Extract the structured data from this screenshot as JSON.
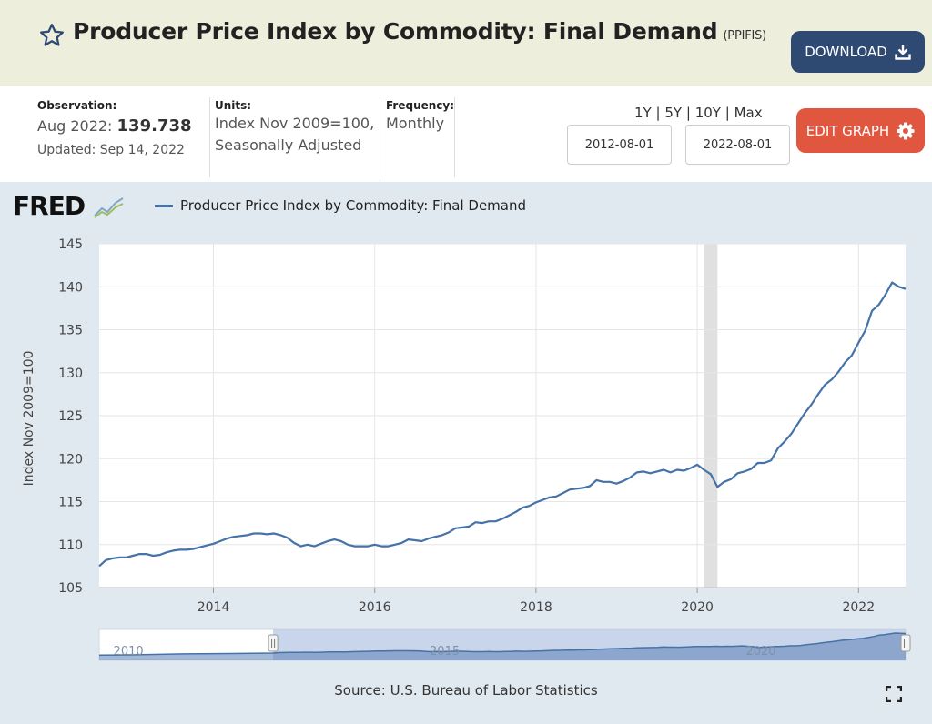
{
  "header": {
    "title": "Producer Price Index by Commodity: Final Demand",
    "series_id": "(PPIFIS)",
    "download_label": "DOWNLOAD"
  },
  "info": {
    "observation_label": "Observation:",
    "observation_date": "Aug 2022:",
    "observation_value": "139.738",
    "updated": "Updated: Sep 14, 2022",
    "units_label": "Units:",
    "units_line1": "Index Nov 2009=100,",
    "units_line2": "Seasonally Adjusted",
    "frequency_label": "Frequency:",
    "frequency_value": "Monthly",
    "range_1y": "1Y",
    "range_5y": "5Y",
    "range_10y": "10Y",
    "range_max": "Max",
    "range_sep": "|",
    "start_date": "2012-08-01",
    "end_date": "2022-08-01",
    "edit_label": "EDIT GRAPH"
  },
  "graph": {
    "logo": "FRED",
    "source": "Source: U.S. Bureau of Labor Statistics"
  },
  "colors": {
    "line": "#4572a7",
    "download_bg": "#2e4a72",
    "edit_bg": "#e1563f",
    "header_bg": "#eeeedd",
    "graph_bg": "#e1e9f0",
    "recession": "#e0e0e0"
  },
  "chart_data": {
    "type": "line",
    "title": "",
    "ylabel": "Index Nov 2009=100",
    "xlabel": "",
    "ylim": [
      105,
      145
    ],
    "yticks": [
      105,
      110,
      115,
      120,
      125,
      130,
      135,
      140,
      145
    ],
    "xticks": [
      "2014",
      "2016",
      "2018",
      "2020",
      "2022"
    ],
    "xlim": [
      "2012-08-01",
      "2022-08-01"
    ],
    "recession": [
      "2020-02-01",
      "2020-04-01"
    ],
    "legend_position": "top-left",
    "grid": true,
    "series": [
      {
        "name": "Producer Price Index by Commodity: Final Demand",
        "points": [
          [
            "2012-08-01",
            107.5
          ],
          [
            "2012-09-01",
            108.2
          ],
          [
            "2012-10-01",
            108.4
          ],
          [
            "2012-11-01",
            108.5
          ],
          [
            "2012-12-01",
            108.5
          ],
          [
            "2013-01-01",
            108.7
          ],
          [
            "2013-02-01",
            108.9
          ],
          [
            "2013-03-01",
            108.9
          ],
          [
            "2013-04-01",
            108.7
          ],
          [
            "2013-05-01",
            108.8
          ],
          [
            "2013-06-01",
            109.1
          ],
          [
            "2013-07-01",
            109.3
          ],
          [
            "2013-08-01",
            109.4
          ],
          [
            "2013-09-01",
            109.4
          ],
          [
            "2013-10-01",
            109.5
          ],
          [
            "2013-11-01",
            109.7
          ],
          [
            "2013-12-01",
            109.9
          ],
          [
            "2014-01-01",
            110.1
          ],
          [
            "2014-02-01",
            110.4
          ],
          [
            "2014-03-01",
            110.7
          ],
          [
            "2014-04-01",
            110.9
          ],
          [
            "2014-05-01",
            111.0
          ],
          [
            "2014-06-01",
            111.1
          ],
          [
            "2014-07-01",
            111.3
          ],
          [
            "2014-08-01",
            111.3
          ],
          [
            "2014-09-01",
            111.2
          ],
          [
            "2014-10-01",
            111.3
          ],
          [
            "2014-11-01",
            111.1
          ],
          [
            "2014-12-01",
            110.8
          ],
          [
            "2015-01-01",
            110.2
          ],
          [
            "2015-02-01",
            109.8
          ],
          [
            "2015-03-01",
            110.0
          ],
          [
            "2015-04-01",
            109.8
          ],
          [
            "2015-05-01",
            110.1
          ],
          [
            "2015-06-01",
            110.4
          ],
          [
            "2015-07-01",
            110.6
          ],
          [
            "2015-08-01",
            110.4
          ],
          [
            "2015-09-01",
            110.0
          ],
          [
            "2015-10-01",
            109.8
          ],
          [
            "2015-11-01",
            109.8
          ],
          [
            "2015-12-01",
            109.8
          ],
          [
            "2016-01-01",
            110.0
          ],
          [
            "2016-02-01",
            109.8
          ],
          [
            "2016-03-01",
            109.8
          ],
          [
            "2016-04-01",
            110.0
          ],
          [
            "2016-05-01",
            110.2
          ],
          [
            "2016-06-01",
            110.6
          ],
          [
            "2016-07-01",
            110.5
          ],
          [
            "2016-08-01",
            110.4
          ],
          [
            "2016-09-01",
            110.7
          ],
          [
            "2016-10-01",
            110.9
          ],
          [
            "2016-11-01",
            111.1
          ],
          [
            "2016-12-01",
            111.4
          ],
          [
            "2017-01-01",
            111.9
          ],
          [
            "2017-02-01",
            112.0
          ],
          [
            "2017-03-01",
            112.1
          ],
          [
            "2017-04-01",
            112.6
          ],
          [
            "2017-05-01",
            112.5
          ],
          [
            "2017-06-01",
            112.7
          ],
          [
            "2017-07-01",
            112.7
          ],
          [
            "2017-08-01",
            113.0
          ],
          [
            "2017-09-01",
            113.4
          ],
          [
            "2017-10-01",
            113.8
          ],
          [
            "2017-11-01",
            114.3
          ],
          [
            "2017-12-01",
            114.5
          ],
          [
            "2018-01-01",
            114.9
          ],
          [
            "2018-02-01",
            115.2
          ],
          [
            "2018-03-01",
            115.5
          ],
          [
            "2018-04-01",
            115.6
          ],
          [
            "2018-05-01",
            116.0
          ],
          [
            "2018-06-01",
            116.4
          ],
          [
            "2018-07-01",
            116.5
          ],
          [
            "2018-08-01",
            116.6
          ],
          [
            "2018-09-01",
            116.8
          ],
          [
            "2018-10-01",
            117.5
          ],
          [
            "2018-11-01",
            117.3
          ],
          [
            "2018-12-01",
            117.3
          ],
          [
            "2019-01-01",
            117.1
          ],
          [
            "2019-02-01",
            117.4
          ],
          [
            "2019-03-01",
            117.8
          ],
          [
            "2019-04-01",
            118.4
          ],
          [
            "2019-05-01",
            118.5
          ],
          [
            "2019-06-01",
            118.3
          ],
          [
            "2019-07-01",
            118.5
          ],
          [
            "2019-08-01",
            118.7
          ],
          [
            "2019-09-01",
            118.4
          ],
          [
            "2019-10-01",
            118.7
          ],
          [
            "2019-11-01",
            118.6
          ],
          [
            "2019-12-01",
            118.9
          ],
          [
            "2020-01-01",
            119.3
          ],
          [
            "2020-02-01",
            118.7
          ],
          [
            "2020-03-01",
            118.2
          ],
          [
            "2020-04-01",
            116.7
          ],
          [
            "2020-05-01",
            117.3
          ],
          [
            "2020-06-01",
            117.6
          ],
          [
            "2020-07-01",
            118.3
          ],
          [
            "2020-08-01",
            118.5
          ],
          [
            "2020-09-01",
            118.8
          ],
          [
            "2020-10-01",
            119.5
          ],
          [
            "2020-11-01",
            119.5
          ],
          [
            "2020-12-01",
            119.8
          ],
          [
            "2021-01-01",
            121.2
          ],
          [
            "2021-02-01",
            122.0
          ],
          [
            "2021-03-01",
            122.9
          ],
          [
            "2021-04-01",
            124.1
          ],
          [
            "2021-05-01",
            125.3
          ],
          [
            "2021-06-01",
            126.3
          ],
          [
            "2021-07-01",
            127.5
          ],
          [
            "2021-08-01",
            128.6
          ],
          [
            "2021-09-01",
            129.2
          ],
          [
            "2021-10-01",
            130.1
          ],
          [
            "2021-11-01",
            131.2
          ],
          [
            "2021-12-01",
            132.0
          ],
          [
            "2022-01-01",
            133.5
          ],
          [
            "2022-02-01",
            134.9
          ],
          [
            "2022-03-01",
            137.2
          ],
          [
            "2022-04-01",
            137.9
          ],
          [
            "2022-05-01",
            139.1
          ],
          [
            "2022-06-01",
            140.5
          ],
          [
            "2022-07-01",
            140.0
          ],
          [
            "2022-08-01",
            139.738
          ]
        ]
      }
    ],
    "navigator": {
      "xticks": [
        "2010",
        "2015",
        "2020"
      ],
      "range": [
        "2009-11-01",
        "2022-08-01"
      ],
      "selection": [
        "2012-08-01",
        "2022-08-01"
      ]
    }
  }
}
